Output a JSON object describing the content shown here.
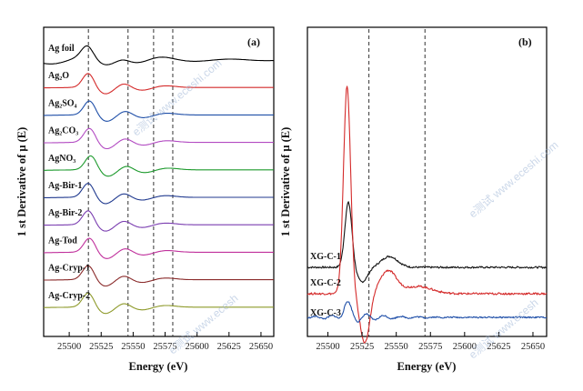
{
  "chart_data": [
    {
      "type": "line",
      "panel_label": "(a)",
      "xlabel": "Energy (eV)",
      "ylabel": "1 st Derivative of  μ (E)",
      "xlim": [
        25480,
        25660
      ],
      "xticks": [
        25500,
        25525,
        25550,
        25575,
        25600,
        25625,
        25650
      ],
      "tick_labels": [
        "25500",
        "25525",
        "25550",
        "25575",
        "25600",
        "25625",
        "25650"
      ],
      "dashed_lines_eV": [
        25515,
        25546,
        25566,
        25581
      ],
      "series": [
        {
          "name": "Ag foil",
          "color": "#000000",
          "peak_eV": 25514
        },
        {
          "name": "Ag₂O",
          "color": "#d42a2a",
          "peak_eV": 25515
        },
        {
          "name": "Ag₂SO₄",
          "color": "#1f4fa8",
          "peak_eV": 25516
        },
        {
          "name": "Ag₂CO₃",
          "color": "#b24ac2",
          "peak_eV": 25516
        },
        {
          "name": "AgNO₃",
          "color": "#1c9a2c",
          "peak_eV": 25517
        },
        {
          "name": "Ag-Bir-1",
          "color": "#203a8f",
          "peak_eV": 25515
        },
        {
          "name": "Ag-Bir-2",
          "color": "#7a3db0",
          "peak_eV": 25515
        },
        {
          "name": "Ag-Tod",
          "color": "#c0309c",
          "peak_eV": 25516
        },
        {
          "name": "Ag-Cryp-1",
          "color": "#8a2a2a",
          "peak_eV": 25515
        },
        {
          "name": "Ag-Cryp-2",
          "color": "#8e9a2a",
          "peak_eV": 25515
        }
      ]
    },
    {
      "type": "line",
      "panel_label": "(b)",
      "xlabel": "Energy (eV)",
      "ylabel": "1 st Derivative of  μ (E)",
      "xlim": [
        25485,
        25660
      ],
      "xticks": [
        25500,
        25525,
        25550,
        25575,
        25600,
        25625,
        25650
      ],
      "tick_labels": [
        "25500",
        "25525",
        "25550",
        "25575",
        "25600",
        "25625",
        "25650"
      ],
      "dashed_lines_eV": [
        25530,
        25571
      ],
      "series": [
        {
          "name": "XG-C-1",
          "color": "#111111",
          "peak_eV": 25515
        },
        {
          "name": "XG-C-2",
          "color": "#d42a2a",
          "peak_eV": 25514
        },
        {
          "name": "XG-C-3",
          "color": "#1f4fa8",
          "peak_eV": 25514
        }
      ]
    }
  ],
  "watermark": [
    "e测试 www.eceshi.com",
    "e测试 www.eceshi.com",
    "e测试 www.ecesh",
    "e测试 www.ecesh"
  ]
}
